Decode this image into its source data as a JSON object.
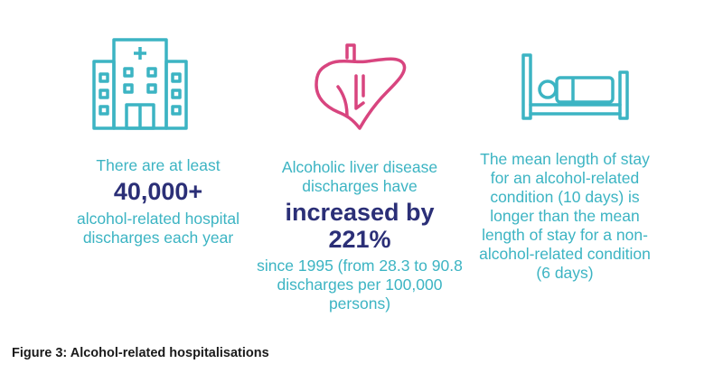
{
  "stats": [
    {
      "icon": "hospital-building-icon",
      "lead": "There are at least",
      "highlight": "40,000+",
      "rest": "alcohol-related hospital discharges each year"
    },
    {
      "icon": "liver-icon",
      "lead": "Alcoholic liver disease discharges have",
      "highlight": "increased by 221%",
      "rest": "since 1995 (from 28.3 to 90.8 discharges per 100,000 persons)"
    },
    {
      "icon": "hospital-bed-icon",
      "lead": "",
      "highlight": "",
      "rest": "The mean length of stay for an alcohol-related condition (10 days) is longer than the mean length of stay for a non-alcohol-related condition (6 days)"
    }
  ],
  "caption": "Figure 3: Alcohol-related hospitalisations",
  "colors": {
    "accent_teal": "#3cb4c3",
    "accent_pink": "#d8457f",
    "highlight_navy": "#2b2f77"
  }
}
